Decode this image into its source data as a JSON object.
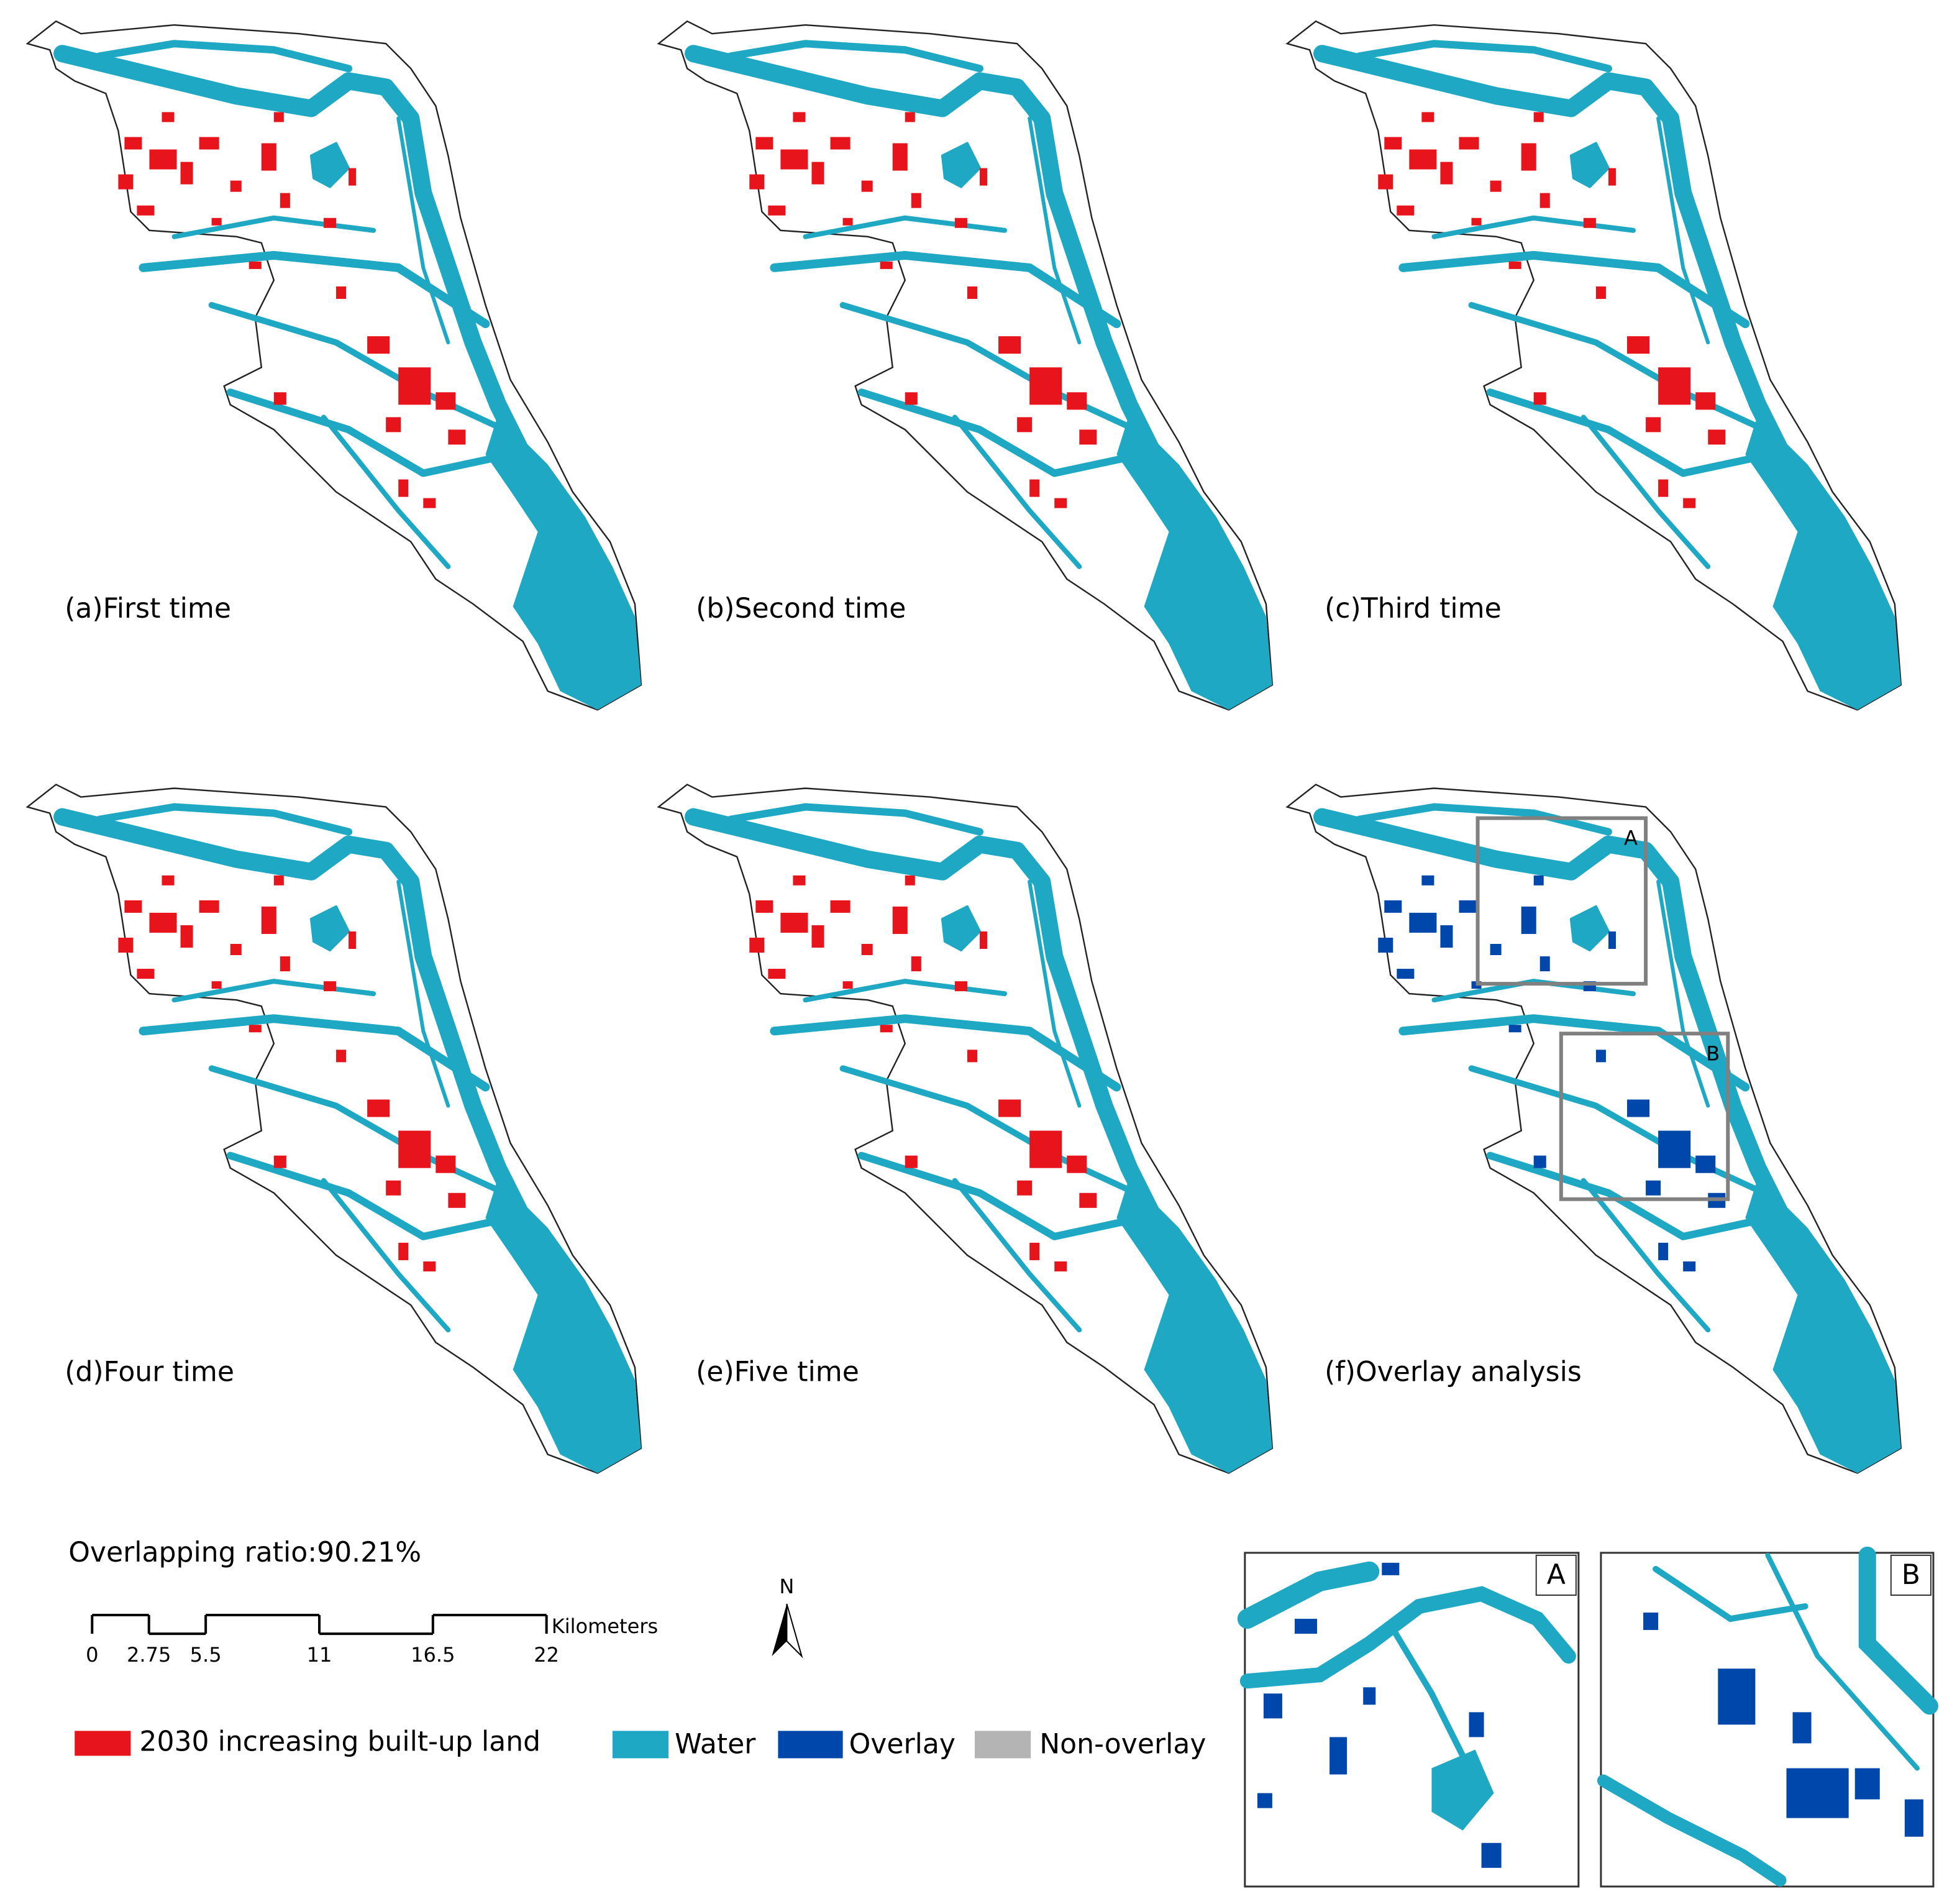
{
  "panels": [
    {
      "label": "(a)First time"
    },
    {
      "label": "(b)Second time"
    },
    {
      "label": "(c)Third time"
    },
    {
      "label": "(d)Four time"
    },
    {
      "label": "(e)Five time"
    },
    {
      "label": "(f)Overlay analysis",
      "zones": [
        "A",
        "B"
      ]
    }
  ],
  "overlap_text": "Overlapping ratio:90.21%",
  "scale_bar": {
    "ticks": [
      0,
      2.75,
      5.5,
      11,
      16.5,
      22
    ],
    "unit": "Kilometers"
  },
  "north": "N",
  "legend": [
    "2030 increasing built-up land",
    "Water",
    "Overlay",
    "Non-overlay"
  ],
  "insets": [
    "A",
    "B"
  ]
}
